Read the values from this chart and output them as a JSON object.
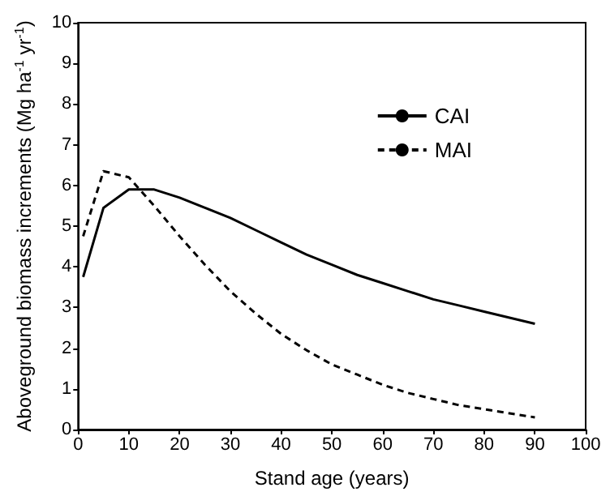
{
  "chart_data": {
    "type": "line",
    "xlabel": "Stand age (years)",
    "ylabel": "Aboveground biomass increments (Mg ha$^{-1}$ yr$^{-1}$)",
    "xlim": [
      0,
      100
    ],
    "xticks": [
      0,
      10,
      20,
      30,
      40,
      50,
      60,
      70,
      80,
      90,
      100
    ],
    "ylim": [
      0,
      10
    ],
    "yticks": [
      0,
      1,
      2,
      3,
      4,
      5,
      6,
      7,
      8,
      9,
      10
    ],
    "x": [
      1,
      5,
      10,
      15,
      20,
      25,
      30,
      35,
      40,
      45,
      50,
      55,
      60,
      65,
      70,
      75,
      80,
      85,
      90
    ],
    "series": [
      {
        "name": "CAI",
        "color": "#000000",
        "line_style": "solid",
        "values": [
          3.75,
          5.45,
          5.9,
          5.9,
          5.7,
          5.45,
          5.2,
          4.9,
          4.6,
          4.3,
          4.05,
          3.8,
          3.6,
          3.4,
          3.2,
          3.05,
          2.9,
          2.75,
          2.6
        ]
      },
      {
        "name": "MAI",
        "color": "#000000",
        "line_style": "dashed",
        "values": [
          4.75,
          6.35,
          6.2,
          5.5,
          4.75,
          4.05,
          3.4,
          2.85,
          2.35,
          1.95,
          1.6,
          1.35,
          1.1,
          0.9,
          0.75,
          0.6,
          0.5,
          0.4,
          0.3
        ]
      }
    ],
    "legend": "top right",
    "grid": false,
    "marker": "none"
  }
}
